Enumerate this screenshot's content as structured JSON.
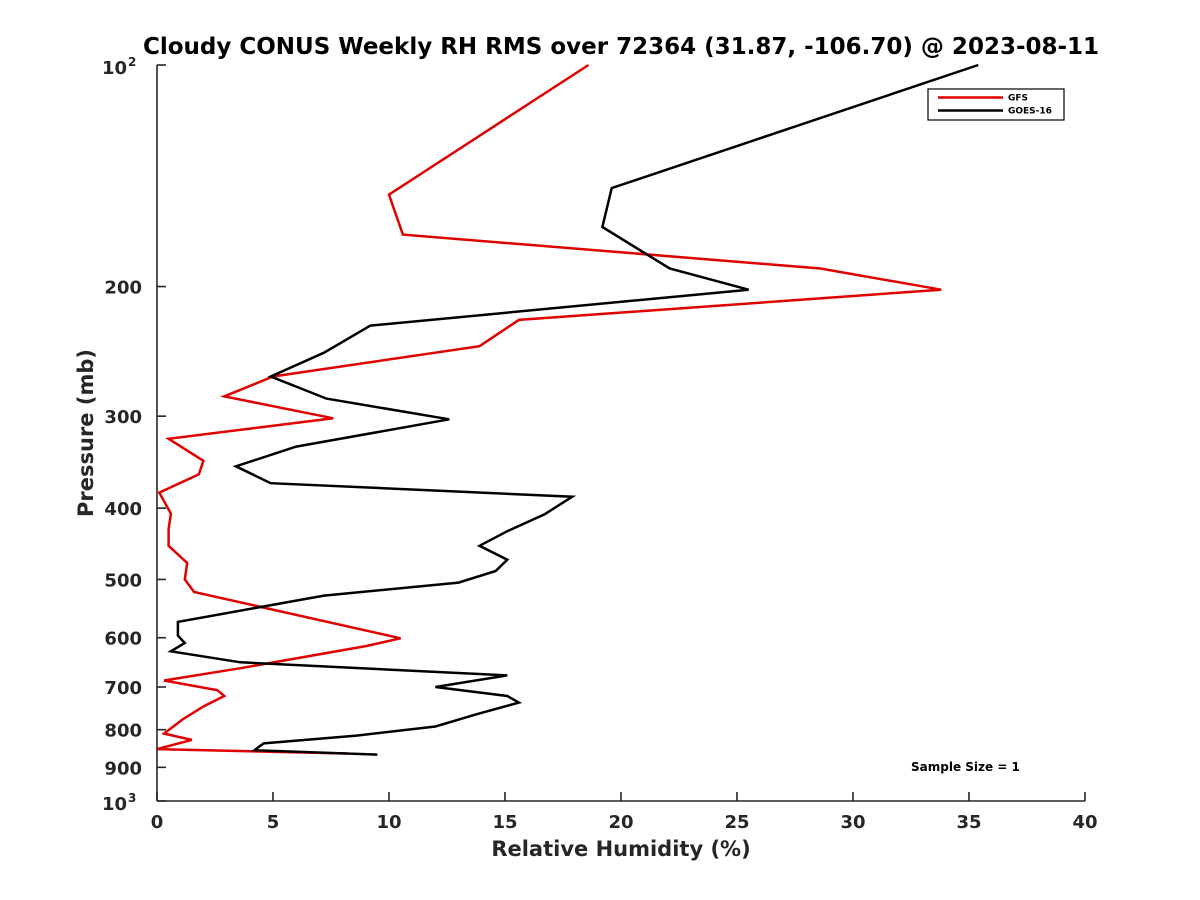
{
  "chart_data": {
    "type": "line",
    "title": "Cloudy CONUS Weekly RH RMS over 72364 (31.87, -106.70) @ 2023-08-11",
    "xlabel": "Relative Humidity (%)",
    "ylabel": "Pressure (mb)",
    "xlim": [
      0,
      40
    ],
    "ylim": [
      100,
      1000
    ],
    "yscale": "log",
    "yreversed": true,
    "x_ticks": [
      "0",
      "5",
      "10",
      "15",
      "20",
      "25",
      "30",
      "35",
      "40"
    ],
    "y_ticks": [
      {
        "value": 100,
        "base": "10",
        "exp": "2"
      },
      {
        "value": 200,
        "label": "200"
      },
      {
        "value": 300,
        "label": "300"
      },
      {
        "value": 400,
        "label": "400"
      },
      {
        "value": 500,
        "label": "500"
      },
      {
        "value": 600,
        "label": "600"
      },
      {
        "value": 700,
        "label": "700"
      },
      {
        "value": 800,
        "label": "800"
      },
      {
        "value": 900,
        "label": "900"
      },
      {
        "value": 1000,
        "base": "10",
        "exp": "3"
      }
    ],
    "grid": false,
    "legend_position": "top-right",
    "annotation": "Sample Size = 1",
    "series": [
      {
        "name": "GFS",
        "color": "#e00000",
        "points": [
          [
            18.6,
            100
          ],
          [
            10.0,
            150
          ],
          [
            10.6,
            170
          ],
          [
            28.6,
            189
          ],
          [
            33.8,
            202
          ],
          [
            15.6,
            222
          ],
          [
            13.9,
            241
          ],
          [
            5.0,
            265
          ],
          [
            2.9,
            282
          ],
          [
            7.6,
            302
          ],
          [
            0.5,
            322
          ],
          [
            2.0,
            345
          ],
          [
            1.8,
            360
          ],
          [
            0.1,
            381
          ],
          [
            0.6,
            407
          ],
          [
            0.5,
            427
          ],
          [
            0.5,
            450
          ],
          [
            1.3,
            475
          ],
          [
            1.2,
            500
          ],
          [
            1.6,
            520
          ],
          [
            10.5,
            601
          ],
          [
            9.0,
            616
          ],
          [
            3.6,
            660
          ],
          [
            0.3,
            686
          ],
          [
            2.6,
            707
          ],
          [
            2.9,
            720
          ],
          [
            2.0,
            744
          ],
          [
            1.1,
            775
          ],
          [
            0.3,
            810
          ],
          [
            1.5,
            826
          ],
          [
            0.0,
            850
          ],
          [
            8.2,
            862
          ]
        ]
      },
      {
        "name": "GOES-16",
        "color": "#000000",
        "points": [
          [
            35.4,
            100
          ],
          [
            19.6,
            147
          ],
          [
            19.2,
            166
          ],
          [
            22.1,
            189
          ],
          [
            25.5,
            202
          ],
          [
            9.2,
            226
          ],
          [
            7.2,
            246
          ],
          [
            4.9,
            265
          ],
          [
            7.3,
            284
          ],
          [
            12.6,
            303
          ],
          [
            6.0,
            330
          ],
          [
            3.4,
            351
          ],
          [
            4.9,
            370
          ],
          [
            17.9,
            386
          ],
          [
            16.7,
            408
          ],
          [
            15.1,
            430
          ],
          [
            13.9,
            450
          ],
          [
            15.1,
            470
          ],
          [
            14.6,
            487
          ],
          [
            13.0,
            505
          ],
          [
            7.2,
            526
          ],
          [
            0.9,
            571
          ],
          [
            0.9,
            596
          ],
          [
            1.2,
            610
          ],
          [
            0.6,
            626
          ],
          [
            3.6,
            648
          ],
          [
            15.1,
            675
          ],
          [
            12.0,
            700
          ],
          [
            15.1,
            720
          ],
          [
            15.6,
            735
          ],
          [
            13.8,
            762
          ],
          [
            12.0,
            792
          ],
          [
            8.6,
            815
          ],
          [
            4.6,
            835
          ],
          [
            4.2,
            853
          ],
          [
            9.5,
            865
          ]
        ]
      }
    ]
  }
}
